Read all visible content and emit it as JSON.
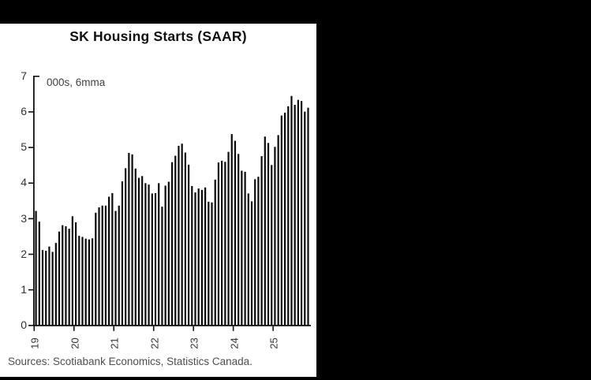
{
  "page": {
    "background_color": "#000000",
    "panel_color": "#ffffff"
  },
  "chart_data": {
    "type": "bar",
    "title": "SK Housing Starts (SAAR)",
    "units_note": "000s, 6mma",
    "source": "Sources: Scotiabank Economics, Statistics Canada.",
    "frequency": "monthly",
    "start": "2019-01",
    "end": "2025-11",
    "xlabel": "",
    "ylabel": "",
    "ylim": [
      0,
      7
    ],
    "y_ticks": [
      0,
      1,
      2,
      3,
      4,
      5,
      6,
      7
    ],
    "x_tick_labels": [
      "19",
      "20",
      "21",
      "22",
      "23",
      "24",
      "25"
    ],
    "months_per_tick": 12,
    "grid": false,
    "legend": "none",
    "bar_color": "#0a0a0a",
    "axis_color": "#111111",
    "values": [
      3.2,
      2.9,
      2.1,
      2.08,
      2.2,
      2.05,
      2.3,
      2.62,
      2.8,
      2.77,
      2.7,
      3.05,
      2.88,
      2.5,
      2.47,
      2.42,
      2.4,
      2.43,
      3.15,
      3.3,
      3.35,
      3.35,
      3.6,
      3.7,
      3.2,
      3.35,
      4.03,
      4.4,
      4.83,
      4.79,
      4.39,
      4.13,
      4.18,
      3.98,
      3.94,
      3.69,
      3.7,
      3.98,
      3.32,
      3.91,
      4.02,
      4.57,
      4.75,
      5.03,
      5.09,
      4.84,
      4.5,
      3.9,
      3.72,
      3.83,
      3.79,
      3.86,
      3.46,
      3.44,
      4.08,
      4.56,
      4.61,
      4.58,
      4.86,
      5.36,
      5.17,
      4.8,
      4.33,
      4.3,
      3.69,
      3.47,
      4.09,
      4.16,
      4.74,
      5.29,
      5.11,
      4.49,
      5.0,
      5.33,
      5.88,
      5.96,
      6.14,
      6.43,
      6.18,
      6.32,
      6.29,
      5.99,
      6.1
    ]
  }
}
